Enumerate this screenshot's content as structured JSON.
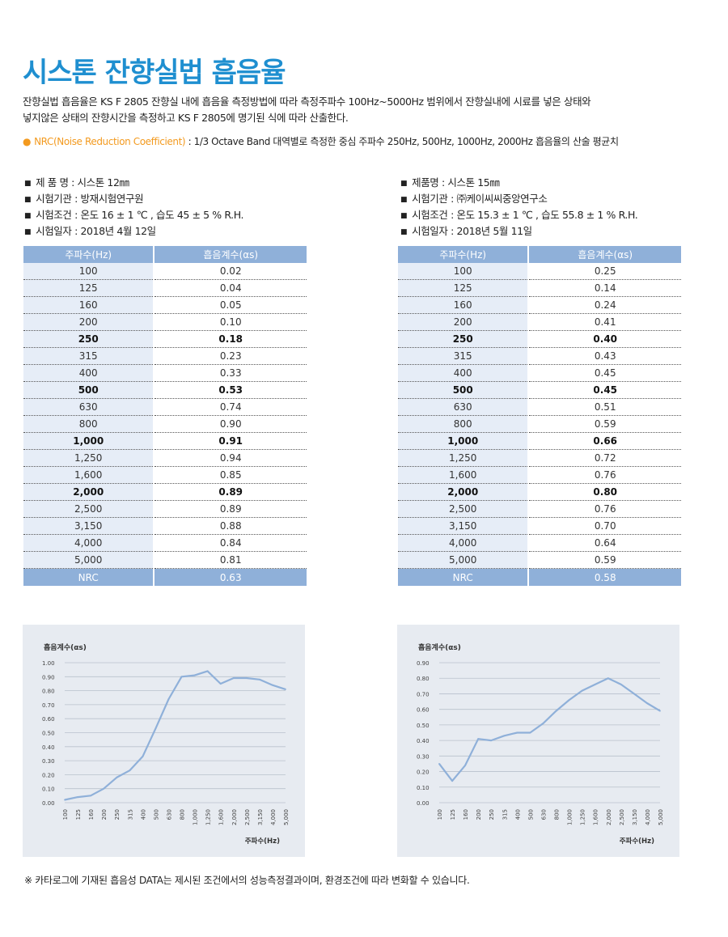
{
  "title": "시스톤 잔향실법 흡음율",
  "description": {
    "line1": "잔향실법 흡음율은 KS F 2805 잔향실 내에 흡음율 측정방법에 따라 측정주파수 100Hz~5000Hz 범위에서 잔향실내에 시료를 넣은 상태와",
    "line2": "넣지않은 상태의 잔향시간을 측정하고 KS F 2805에 명기된 식에 따라 산출한다."
  },
  "nrc_note": {
    "highlight": "NRC(Noise Reduction Coefficient)",
    "text": " : 1/3 Octave Band 대역별로 측정한 중심 주파수 250Hz, 500Hz, 1000Hz, 2000Hz 흡음율의 산술 평균치"
  },
  "highlight_color": "#f39a1f",
  "title_color": "#1f8fd0",
  "header_color": "#8fb0d9",
  "tests": [
    {
      "info": [
        "제 품 명 : 시스톤 12㎜",
        "시험기관 : 방재시험연구원",
        "시험조건 : 온도 16 ± 1 ℃ , 습도 45 ± 5 % R.H.",
        "시험일자 : 2018년 4월 12일"
      ],
      "headers": [
        "주파수(Hz)",
        "흡음계수(αs)"
      ],
      "rows": [
        {
          "freq": "100",
          "coef": "0.02",
          "bold": false
        },
        {
          "freq": "125",
          "coef": "0.04",
          "bold": false
        },
        {
          "freq": "160",
          "coef": "0.05",
          "bold": false
        },
        {
          "freq": "200",
          "coef": "0.10",
          "bold": false
        },
        {
          "freq": "250",
          "coef": "0.18",
          "bold": true
        },
        {
          "freq": "315",
          "coef": "0.23",
          "bold": false
        },
        {
          "freq": "400",
          "coef": "0.33",
          "bold": false
        },
        {
          "freq": "500",
          "coef": "0.53",
          "bold": true
        },
        {
          "freq": "630",
          "coef": "0.74",
          "bold": false
        },
        {
          "freq": "800",
          "coef": "0.90",
          "bold": false
        },
        {
          "freq": "1,000",
          "coef": "0.91",
          "bold": true
        },
        {
          "freq": "1,250",
          "coef": "0.94",
          "bold": false
        },
        {
          "freq": "1,600",
          "coef": "0.85",
          "bold": false
        },
        {
          "freq": "2,000",
          "coef": "0.89",
          "bold": true
        },
        {
          "freq": "2,500",
          "coef": "0.89",
          "bold": false
        },
        {
          "freq": "3,150",
          "coef": "0.88",
          "bold": false
        },
        {
          "freq": "4,000",
          "coef": "0.84",
          "bold": false
        },
        {
          "freq": "5,000",
          "coef": "0.81",
          "bold": false
        }
      ],
      "nrc_label": "NRC",
      "nrc_value": "0.63"
    },
    {
      "info": [
        "제품명 : 시스톤 15㎜",
        "시험기관 : ㈜케이씨씨중앙연구소",
        "시험조건 : 온도 15.3 ± 1 ℃ , 습도 55.8 ± 1 % R.H.",
        "시험일자 : 2018년 5월 11일"
      ],
      "headers": [
        "주파수(Hz)",
        "흡음계수(αs)"
      ],
      "rows": [
        {
          "freq": "100",
          "coef": "0.25",
          "bold": false
        },
        {
          "freq": "125",
          "coef": "0.14",
          "bold": false
        },
        {
          "freq": "160",
          "coef": "0.24",
          "bold": false
        },
        {
          "freq": "200",
          "coef": "0.41",
          "bold": false
        },
        {
          "freq": "250",
          "coef": "0.40",
          "bold": true
        },
        {
          "freq": "315",
          "coef": "0.43",
          "bold": false
        },
        {
          "freq": "400",
          "coef": "0.45",
          "bold": false
        },
        {
          "freq": "500",
          "coef": "0.45",
          "bold": true
        },
        {
          "freq": "630",
          "coef": "0.51",
          "bold": false
        },
        {
          "freq": "800",
          "coef": "0.59",
          "bold": false
        },
        {
          "freq": "1,000",
          "coef": "0.66",
          "bold": true
        },
        {
          "freq": "1,250",
          "coef": "0.72",
          "bold": false
        },
        {
          "freq": "1,600",
          "coef": "0.76",
          "bold": false
        },
        {
          "freq": "2,000",
          "coef": "0.80",
          "bold": true
        },
        {
          "freq": "2,500",
          "coef": "0.76",
          "bold": false
        },
        {
          "freq": "3,150",
          "coef": "0.70",
          "bold": false
        },
        {
          "freq": "4,000",
          "coef": "0.64",
          "bold": false
        },
        {
          "freq": "5,000",
          "coef": "0.59",
          "bold": false
        }
      ],
      "nrc_label": "NRC",
      "nrc_value": "0.58"
    }
  ],
  "chart_data": [
    {
      "type": "line",
      "ylabel": "흡음계수(αs)",
      "xlabel": "주파수(Hz)",
      "categories": [
        "100",
        "125",
        "160",
        "200",
        "250",
        "315",
        "400",
        "500",
        "630",
        "800",
        "1,000",
        "1,250",
        "1,600",
        "2,000",
        "2,500",
        "3,150",
        "4,000",
        "5,000"
      ],
      "values": [
        0.02,
        0.04,
        0.05,
        0.1,
        0.18,
        0.23,
        0.33,
        0.53,
        0.74,
        0.9,
        0.91,
        0.94,
        0.85,
        0.89,
        0.89,
        0.88,
        0.84,
        0.81
      ],
      "ylim": [
        0,
        1.0
      ],
      "yticks": [
        "0.00",
        "0.10",
        "0.20",
        "0.30",
        "0.40",
        "0.50",
        "0.60",
        "0.70",
        "0.80",
        "0.90",
        "1.00"
      ],
      "line_color": "#8fb0d9",
      "grid": true
    },
    {
      "type": "line",
      "ylabel": "흡음계수(αs)",
      "xlabel": "주파수(Hz)",
      "categories": [
        "100",
        "125",
        "160",
        "200",
        "250",
        "315",
        "400",
        "500",
        "630",
        "800",
        "1,000",
        "1,250",
        "1,600",
        "2,000",
        "2,500",
        "3,150",
        "4,000",
        "5,000"
      ],
      "values": [
        0.25,
        0.14,
        0.24,
        0.41,
        0.4,
        0.43,
        0.45,
        0.45,
        0.51,
        0.59,
        0.66,
        0.72,
        0.76,
        0.8,
        0.76,
        0.7,
        0.64,
        0.59
      ],
      "ylim": [
        0,
        0.9
      ],
      "yticks": [
        "0.00",
        "0.10",
        "0.20",
        "0.30",
        "0.40",
        "0.50",
        "0.60",
        "0.70",
        "0.80",
        "0.90"
      ],
      "line_color": "#8fb0d9",
      "grid": true
    }
  ],
  "footnote": "※ 카타로그에 기재된 흡음성 DATA는 제시된 조건에서의 성능측정결과이며, 환경조건에 따라 변화할 수 있습니다."
}
